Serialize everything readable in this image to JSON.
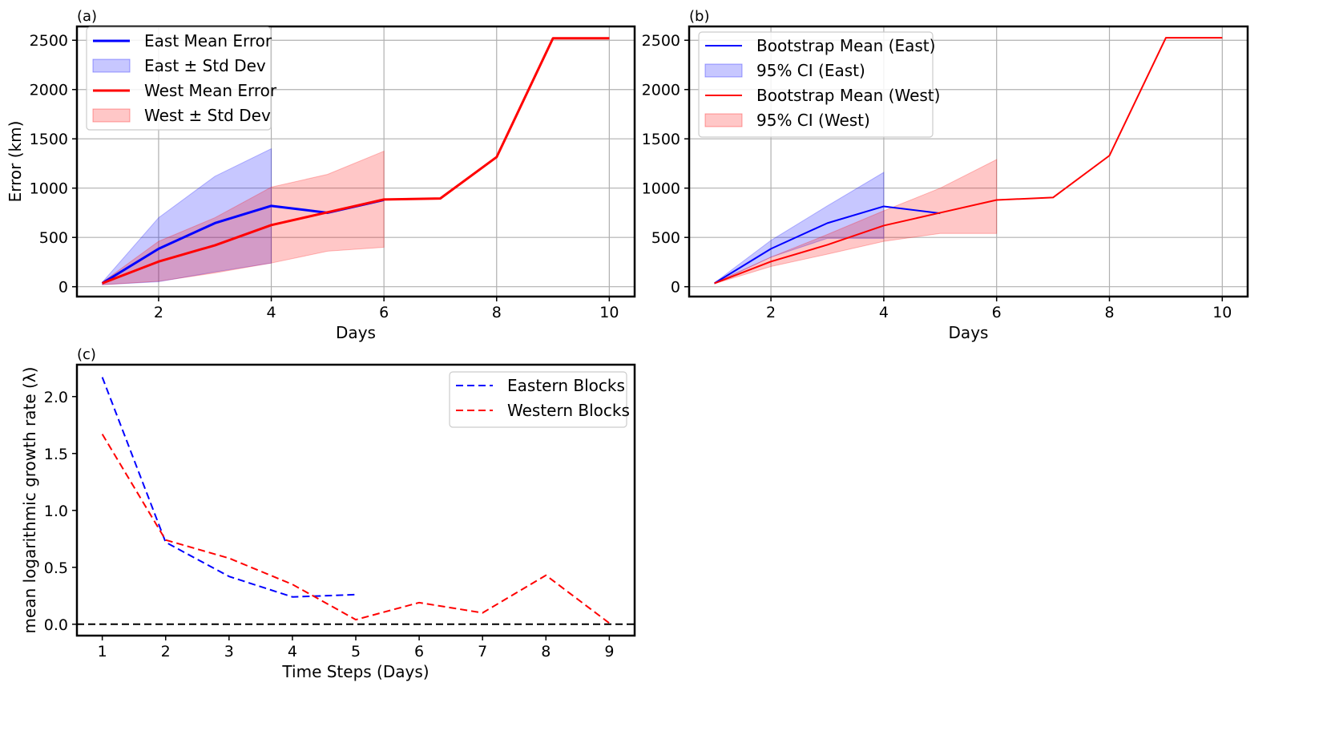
{
  "colors": {
    "east": "#0000ff",
    "west": "#ff0000",
    "zero": "#000000",
    "grid": "#b0b0b0"
  },
  "chart_data": [
    {
      "id": "a",
      "type": "line",
      "panel_label": "(a)",
      "xlabel": "Days",
      "ylabel": "Error (km)",
      "xlim": [
        0.55,
        10.45
      ],
      "ylim": [
        -100,
        2640
      ],
      "xticks": [
        2,
        4,
        6,
        8,
        10
      ],
      "yticks": [
        0,
        500,
        1000,
        1500,
        2000,
        2500
      ],
      "grid": true,
      "legend_position": "top-left",
      "series": [
        {
          "name": "East Mean Error",
          "kind": "line",
          "color": "#0000ff",
          "width": 3,
          "x": [
            1,
            2,
            3,
            4,
            5,
            6
          ],
          "y": [
            35,
            385,
            645,
            820,
            750,
            880
          ]
        },
        {
          "name": "East ± Std Dev",
          "kind": "band",
          "color": "#0000ff",
          "opacity": 0.22,
          "x": [
            1,
            2,
            3,
            4
          ],
          "lower": [
            20,
            50,
            150,
            240
          ],
          "upper": [
            45,
            700,
            1120,
            1400
          ]
        },
        {
          "name": "West Mean Error",
          "kind": "line",
          "color": "#ff0000",
          "width": 3,
          "x": [
            1,
            2,
            3,
            4,
            5,
            6,
            7,
            8,
            9,
            10
          ],
          "y": [
            35,
            255,
            420,
            625,
            755,
            885,
            895,
            1315,
            2520,
            2520
          ]
        },
        {
          "name": "West ± Std Dev",
          "kind": "band",
          "color": "#ff0000",
          "opacity": 0.22,
          "x": [
            1,
            2,
            3,
            4,
            5,
            6
          ],
          "lower": [
            20,
            55,
            140,
            240,
            360,
            400
          ],
          "upper": [
            45,
            460,
            700,
            1010,
            1140,
            1375
          ]
        }
      ]
    },
    {
      "id": "b",
      "type": "line",
      "panel_label": "(b)",
      "xlabel": "Days",
      "ylabel": "",
      "xlim": [
        0.55,
        10.45
      ],
      "ylim": [
        -100,
        2640
      ],
      "xticks": [
        2,
        4,
        6,
        8,
        10
      ],
      "yticks": [
        0,
        500,
        1000,
        1500,
        2000,
        2500
      ],
      "grid": true,
      "legend_position": "top-left",
      "series": [
        {
          "name": "Bootstrap Mean (East)",
          "kind": "line",
          "color": "#0000ff",
          "width": 2,
          "x": [
            1,
            2,
            3,
            4,
            5
          ],
          "y": [
            35,
            385,
            645,
            815,
            745
          ]
        },
        {
          "name": "95% CI (East)",
          "kind": "band",
          "color": "#0000ff",
          "opacity": 0.22,
          "x": [
            1,
            2,
            3,
            4
          ],
          "lower": [
            30,
            300,
            490,
            490
          ],
          "upper": [
            40,
            470,
            820,
            1160
          ]
        },
        {
          "name": "Bootstrap Mean (West)",
          "kind": "line",
          "color": "#ff0000",
          "width": 2,
          "x": [
            1,
            2,
            3,
            4,
            5,
            6,
            7,
            8,
            9,
            10
          ],
          "y": [
            35,
            255,
            425,
            620,
            750,
            880,
            905,
            1330,
            2525,
            2525
          ]
        },
        {
          "name": "95% CI (West)",
          "kind": "band",
          "color": "#ff0000",
          "opacity": 0.22,
          "x": [
            1,
            2,
            3,
            4,
            5,
            6
          ],
          "lower": [
            30,
            205,
            330,
            460,
            540,
            540
          ],
          "upper": [
            40,
            300,
            530,
            770,
            1000,
            1290
          ]
        }
      ]
    },
    {
      "id": "c",
      "type": "line",
      "panel_label": "(c)",
      "xlabel": "Time Steps (Days)",
      "ylabel": "mean logarithmic growth rate (λ)",
      "xlim": [
        0.6,
        9.4
      ],
      "ylim": [
        -0.1,
        2.28
      ],
      "xticks": [
        1,
        2,
        3,
        4,
        5,
        6,
        7,
        8,
        9
      ],
      "yticks": [
        0.0,
        0.5,
        1.0,
        1.5,
        2.0
      ],
      "ytick_labels": [
        "0.0",
        "0.5",
        "1.0",
        "1.5",
        "2.0"
      ],
      "grid": false,
      "legend_position": "top-right",
      "series": [
        {
          "name": "Eastern Blocks",
          "kind": "dashed",
          "color": "#0000ff",
          "width": 2,
          "x": [
            1,
            2,
            3,
            4,
            5
          ],
          "y": [
            2.17,
            0.72,
            0.42,
            0.24,
            0.26
          ]
        },
        {
          "name": "Western Blocks",
          "kind": "dashed",
          "color": "#ff0000",
          "width": 2,
          "x": [
            1,
            2,
            3,
            4,
            5,
            6,
            7,
            8,
            9
          ],
          "y": [
            1.67,
            0.74,
            0.58,
            0.35,
            0.04,
            0.19,
            0.1,
            0.43,
            0.01
          ]
        }
      ],
      "reference_line": {
        "y": 0,
        "color": "#000000",
        "style": "dashed"
      }
    }
  ]
}
